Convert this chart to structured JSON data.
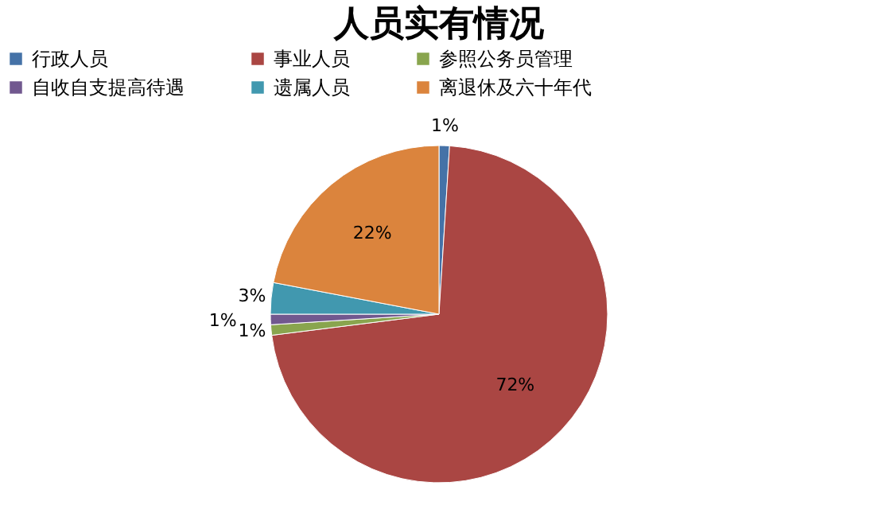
{
  "chart_data": {
    "type": "pie",
    "title": "人员实有情况",
    "categories": [
      "行政人员",
      "事业人员",
      "参照公务员管理",
      "自收自支提高待遇",
      "遗属人员",
      "离退休及六十年代"
    ],
    "values": [
      1,
      72,
      1,
      1,
      3,
      22
    ],
    "value_labels": [
      "1%",
      "72%",
      "1%",
      "1%",
      "3%",
      "22%"
    ],
    "colors": [
      "#4572a7",
      "#aa4643",
      "#89a54e",
      "#71588f",
      "#4198af",
      "#db843d"
    ],
    "legend": "top"
  }
}
